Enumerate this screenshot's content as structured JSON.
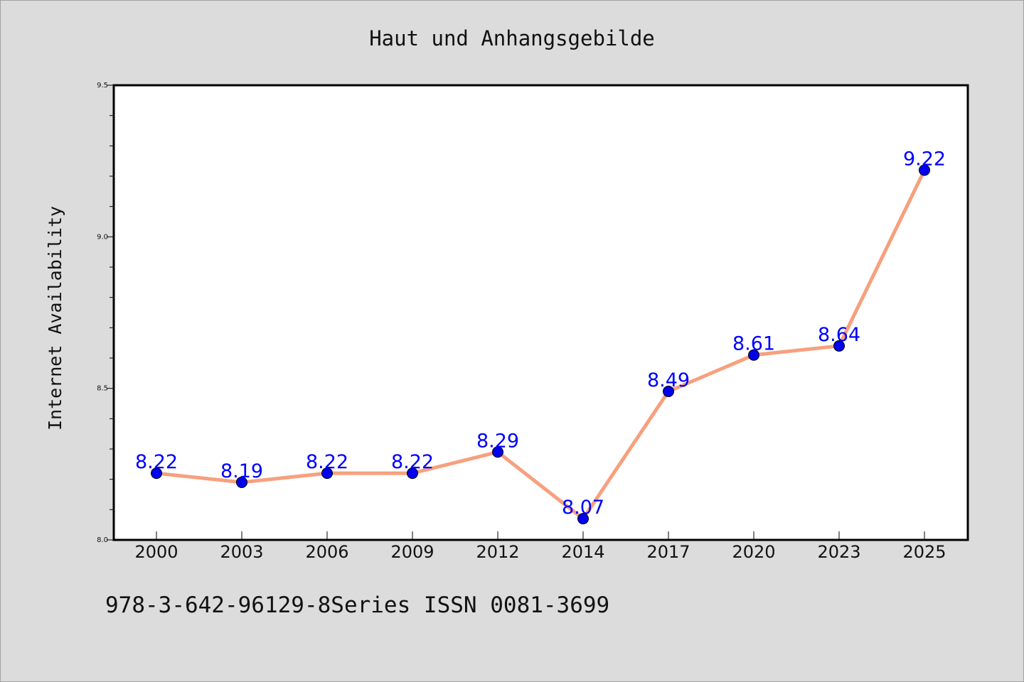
{
  "chart_data": {
    "type": "line",
    "title": "Haut und Anhangsgebilde",
    "xlabel": "",
    "ylabel": "Internet Availability",
    "categories": [
      "2000",
      "2003",
      "2006",
      "2009",
      "2012",
      "2014",
      "2017",
      "2020",
      "2023",
      "2025"
    ],
    "series": [
      {
        "values": [
          8.22,
          8.19,
          8.22,
          8.22,
          8.29,
          8.07,
          8.49,
          8.61,
          8.64,
          9.22
        ],
        "line_color": "#f7a07e",
        "marker_color": "#0000ee",
        "label_color": "#0000ff"
      }
    ],
    "ylim": [
      8.0,
      9.5
    ],
    "yticks": [
      "8.0",
      "8.5",
      "9.0",
      "9.5"
    ],
    "grid": false,
    "data_labels": true
  },
  "footer": "978-3-642-96129-8Series ISSN 0081-3699"
}
